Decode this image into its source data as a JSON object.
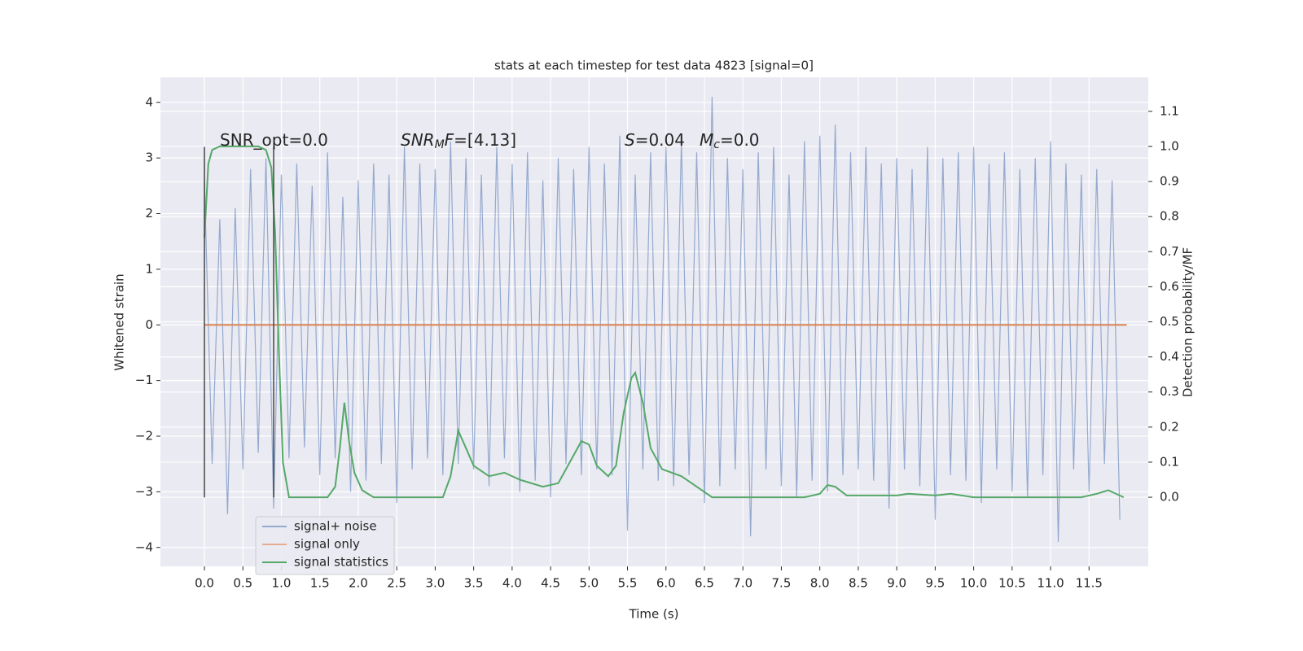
{
  "chart_data": {
    "type": "line",
    "title": "stats at each timestep for test data 4823 [signal=0]",
    "x_label": "Time (s)",
    "y_label": "Whitened strain",
    "y2_label": "Detection probability/MF",
    "xlim": [
      -0.572,
      12.27
    ],
    "ylim": [
      -4.34,
      4.45
    ],
    "y2lim": [
      -0.197,
      1.197
    ],
    "xticks": [
      {
        "value": 0,
        "label": "0.0"
      },
      0.5,
      {
        "value": 1,
        "label": "1.0"
      },
      1.5,
      {
        "value": 2,
        "label": "2.0"
      },
      2.5,
      {
        "value": 3,
        "label": "3.0"
      },
      3.5,
      {
        "value": 4,
        "label": "4.0"
      },
      4.5,
      {
        "value": 5,
        "label": "5.0"
      },
      5.5,
      {
        "value": 6,
        "label": "6.0"
      },
      6.5,
      {
        "value": 7,
        "label": "7.0"
      },
      7.5,
      {
        "value": 8,
        "label": "8.0"
      },
      8.5,
      {
        "value": 9,
        "label": "9.0"
      },
      9.5,
      {
        "value": 10,
        "label": "10.0"
      },
      10.5,
      {
        "value": 11,
        "label": "11.0"
      },
      11.5
    ],
    "yticks": [
      {
        "value": -4,
        "label": "−4"
      },
      {
        "value": -3,
        "label": "−3"
      },
      {
        "value": -2,
        "label": "−2"
      },
      {
        "value": -1,
        "label": "−1"
      },
      0,
      1,
      2,
      3,
      4
    ],
    "y2ticks": [
      {
        "value": 0,
        "label": "0.0"
      },
      0.1,
      0.2,
      0.3,
      0.4,
      0.5,
      0.6,
      0.7,
      0.8,
      0.9,
      {
        "value": 1,
        "label": "1.0"
      },
      1.1
    ],
    "grid": true,
    "legend": "lower left",
    "series": [
      {
        "name": "signal+ noise",
        "color": "#4c72b0",
        "x": [
          0.0,
          0.1,
          0.2,
          0.3,
          0.4,
          0.5,
          0.6,
          0.7,
          0.8,
          0.9,
          1.0,
          1.1,
          1.2,
          1.3,
          1.4,
          1.5,
          1.6,
          1.7,
          1.8,
          1.9,
          2.0,
          2.1,
          2.2,
          2.3,
          2.4,
          2.5,
          2.6,
          2.7,
          2.8,
          2.9,
          3.0,
          3.1,
          3.2,
          3.3,
          3.4,
          3.5,
          3.6,
          3.7,
          3.8,
          3.9,
          4.0,
          4.1,
          4.2,
          4.3,
          4.4,
          4.5,
          4.6,
          4.7,
          4.8,
          4.9,
          5.0,
          5.1,
          5.2,
          5.3,
          5.4,
          5.5,
          5.6,
          5.7,
          5.8,
          5.9,
          6.0,
          6.1,
          6.2,
          6.3,
          6.4,
          6.5,
          6.6,
          6.7,
          6.8,
          6.9,
          7.0,
          7.1,
          7.2,
          7.3,
          7.4,
          7.5,
          7.6,
          7.7,
          7.8,
          7.9,
          8.0,
          8.1,
          8.2,
          8.3,
          8.4,
          8.5,
          8.6,
          8.7,
          8.8,
          8.9,
          9.0,
          9.1,
          9.2,
          9.3,
          9.4,
          9.5,
          9.6,
          9.7,
          9.8,
          9.9,
          10.0,
          10.1,
          10.2,
          10.3,
          10.4,
          10.5,
          10.6,
          10.7,
          10.8,
          10.9,
          11.0,
          11.1,
          11.2,
          11.3,
          11.4,
          11.5,
          11.6,
          11.7,
          11.8,
          11.9
        ],
        "values": [
          2.6,
          -2.5,
          1.9,
          -3.4,
          2.1,
          -2.6,
          2.8,
          -2.3,
          3.0,
          -3.3,
          2.7,
          -2.4,
          2.9,
          -2.2,
          2.5,
          -2.7,
          3.1,
          -2.4,
          2.3,
          -3.0,
          2.6,
          -2.8,
          2.9,
          -2.5,
          2.7,
          -3.2,
          3.2,
          -2.6,
          2.9,
          -2.4,
          2.8,
          -2.7,
          3.3,
          -2.5,
          3.0,
          -2.6,
          2.7,
          -2.9,
          3.2,
          -2.4,
          2.9,
          -3.0,
          3.1,
          -2.8,
          2.6,
          -3.1,
          3.0,
          -2.5,
          2.8,
          -2.7,
          3.2,
          -2.6,
          2.9,
          -2.7,
          3.4,
          -3.7,
          2.7,
          -2.6,
          3.1,
          -2.8,
          3.2,
          -2.9,
          3.3,
          -2.7,
          3.1,
          -3.2,
          4.1,
          -2.9,
          3.0,
          -2.6,
          2.8,
          -3.8,
          3.1,
          -2.6,
          3.2,
          -2.9,
          2.7,
          -3.1,
          3.3,
          -2.8,
          3.4,
          -3.0,
          3.6,
          -2.7,
          3.1,
          -2.6,
          3.2,
          -2.8,
          2.9,
          -3.3,
          3.0,
          -2.6,
          2.8,
          -2.9,
          3.2,
          -3.5,
          3.0,
          -2.7,
          3.1,
          -2.8,
          3.2,
          -3.2,
          2.9,
          -2.6,
          3.1,
          -3.0,
          2.8,
          -3.1,
          3.0,
          -2.7,
          3.3,
          -3.9,
          2.9,
          -2.6,
          2.7,
          -3.0,
          2.8,
          -2.5,
          2.6,
          -3.5
        ]
      },
      {
        "name": "signal only",
        "color": "#dd8452",
        "x": [
          0.0,
          11.99
        ],
        "values": [
          0,
          0
        ]
      },
      {
        "name": "signal statistics",
        "color": "#55a868",
        "axis": "y2",
        "x": [
          0.0,
          0.05,
          0.1,
          0.2,
          0.5,
          0.7,
          0.8,
          0.87,
          0.92,
          0.97,
          1.02,
          1.1,
          1.6,
          1.7,
          1.76,
          1.82,
          1.88,
          1.95,
          2.05,
          2.2,
          2.8,
          3.1,
          3.2,
          3.3,
          3.4,
          3.5,
          3.7,
          3.9,
          4.1,
          4.4,
          4.6,
          4.75,
          4.9,
          5.0,
          5.1,
          5.25,
          5.35,
          5.45,
          5.55,
          5.6,
          5.7,
          5.8,
          5.95,
          6.2,
          6.4,
          6.6,
          7.0,
          7.8,
          8.0,
          8.1,
          8.2,
          8.35,
          9.0,
          9.15,
          9.5,
          9.7,
          10.0,
          11.4,
          11.6,
          11.75,
          11.95
        ],
        "values": [
          0.74,
          0.95,
          0.99,
          1.0,
          1.0,
          1.0,
          0.99,
          0.94,
          0.75,
          0.4,
          0.1,
          0.0,
          0.0,
          0.03,
          0.14,
          0.27,
          0.16,
          0.07,
          0.02,
          0.0,
          0.0,
          0.0,
          0.06,
          0.19,
          0.14,
          0.09,
          0.06,
          0.07,
          0.05,
          0.03,
          0.04,
          0.1,
          0.16,
          0.15,
          0.09,
          0.06,
          0.09,
          0.24,
          0.34,
          0.355,
          0.27,
          0.14,
          0.08,
          0.06,
          0.03,
          0.0,
          0.0,
          0.0,
          0.01,
          0.035,
          0.03,
          0.005,
          0.005,
          0.01,
          0.005,
          0.01,
          0.0,
          0.0,
          0.01,
          0.02,
          0.0
        ]
      }
    ],
    "vertical_lines": [
      {
        "x": 0.0,
        "ymin": -3.1,
        "ymax": 3.2
      },
      {
        "x": 0.9,
        "ymin": -3.1,
        "ymax": 3.2
      }
    ],
    "annotations": [
      {
        "parts": [
          "SNR_opt=0.0"
        ]
      },
      {
        "parts": [
          "SNR",
          "M",
          "F",
          "=[4.13]"
        ]
      },
      {
        "parts": [
          "S",
          "=0.04"
        ]
      },
      {
        "parts": [
          "M",
          "c",
          "=0.0"
        ]
      }
    ]
  }
}
